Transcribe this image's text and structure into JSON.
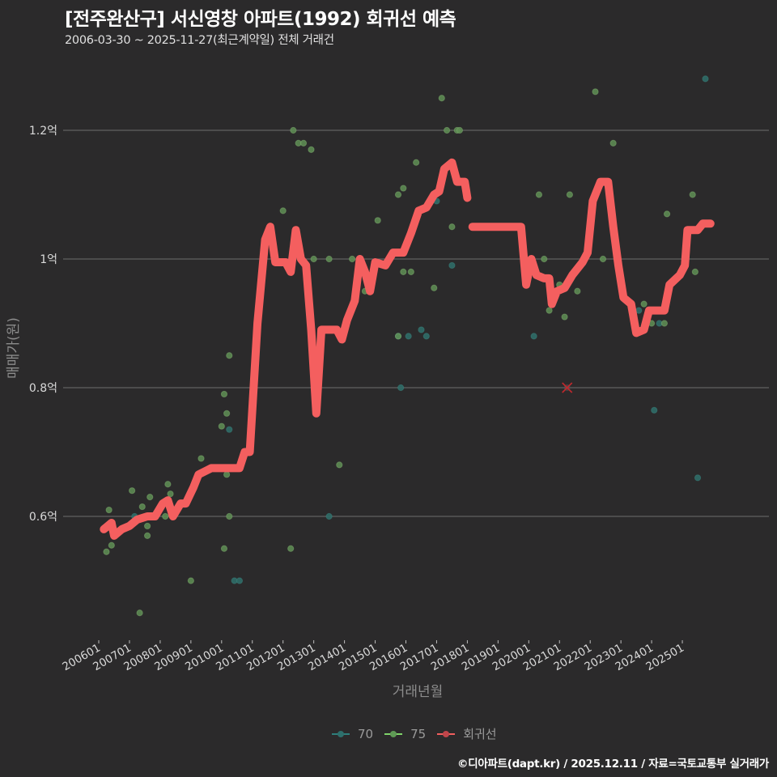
{
  "header": {
    "title": "[전주완산구] 서신영창 아파트(1992) 회귀선 예측",
    "subtitle": "2006-03-30 ~ 2025-11-27(최근계약일) 전체 거래건"
  },
  "footer": {
    "credit": "©디아파트(dapt.kr) / 2025.12.11 / 자료=국토교통부 실거래가"
  },
  "legend": {
    "items": [
      {
        "label": "70",
        "color": "#2e7f7c"
      },
      {
        "label": "75",
        "color": "#7fd46a"
      },
      {
        "label": "회귀선",
        "color": "#f25f5f"
      }
    ]
  },
  "colors": {
    "background": "#2b2a2b",
    "grid": "#6e6e6e",
    "regression": "#f45f5f",
    "area70": "#2f6b67",
    "area75": "#5f8f55",
    "outlier": "#c0282d"
  },
  "chart_data": {
    "type": "scatter+line",
    "title": "[전주완산구] 서신영창 아파트(1992) 회귀선 예측",
    "subtitle": "2006-03-30 ~ 2025-11-27(최근계약일) 전체 거래건",
    "xlabel": "거래년월",
    "ylabel": "매매가(원)",
    "x_ticks": [
      "200601",
      "200701",
      "200801",
      "200901",
      "201001",
      "201101",
      "201201",
      "201301",
      "201401",
      "201501",
      "201601",
      "201701",
      "201801",
      "201901",
      "202001",
      "202101",
      "202201",
      "202301",
      "202401",
      "202501"
    ],
    "y_ticks": [
      {
        "value": 0.6,
        "label": "0.6억"
      },
      {
        "value": 0.8,
        "label": "0.8억"
      },
      {
        "value": 1.0,
        "label": "1억"
      },
      {
        "value": 1.2,
        "label": "1.2억"
      }
    ],
    "ylim": [
      0.42,
      1.3
    ],
    "grid": "horizontal",
    "legend_position": "bottom",
    "series": [
      {
        "name": "70",
        "type": "scatter",
        "points": [
          [
            "200703",
            0.6
          ],
          [
            "201004",
            0.735
          ],
          [
            "201006",
            0.5
          ],
          [
            "201008",
            0.5
          ],
          [
            "201307",
            0.6
          ],
          [
            "201510",
            0.88
          ],
          [
            "201511",
            0.8
          ],
          [
            "201602",
            0.88
          ],
          [
            "201607",
            0.89
          ],
          [
            "201609",
            0.88
          ],
          [
            "201701",
            1.09
          ],
          [
            "201707",
            0.99
          ],
          [
            "202003",
            0.88
          ],
          [
            "202006",
            0.97
          ],
          [
            "202308",
            0.92
          ],
          [
            "202402",
            0.765
          ],
          [
            "202404",
            0.9
          ],
          [
            "202507",
            0.66
          ],
          [
            "202510",
            1.28
          ]
        ]
      },
      {
        "name": "75",
        "type": "scatter",
        "points": [
          [
            "200604",
            0.545
          ],
          [
            "200605",
            0.61
          ],
          [
            "200606",
            0.555
          ],
          [
            "200702",
            0.64
          ],
          [
            "200705",
            0.45
          ],
          [
            "200706",
            0.615
          ],
          [
            "200708",
            0.57
          ],
          [
            "200708",
            0.585
          ],
          [
            "200709",
            0.63
          ],
          [
            "200803",
            0.6
          ],
          [
            "200804",
            0.65
          ],
          [
            "200805",
            0.635
          ],
          [
            "200807",
            0.605
          ],
          [
            "200901",
            0.5
          ],
          [
            "200905",
            0.69
          ],
          [
            "201001",
            0.74
          ],
          [
            "201002",
            0.79
          ],
          [
            "201002",
            0.55
          ],
          [
            "201003",
            0.665
          ],
          [
            "201003",
            0.76
          ],
          [
            "201004",
            0.6
          ],
          [
            "201004",
            0.85
          ],
          [
            "201201",
            1.075
          ],
          [
            "201204",
            0.55
          ],
          [
            "201205",
            1.2
          ],
          [
            "201207",
            1.18
          ],
          [
            "201209",
            1.18
          ],
          [
            "201212",
            1.17
          ],
          [
            "201301",
            1.0
          ],
          [
            "201307",
            1.0
          ],
          [
            "201311",
            0.68
          ],
          [
            "201404",
            1.0
          ],
          [
            "201409",
            0.95
          ],
          [
            "201502",
            1.06
          ],
          [
            "201510",
            1.1
          ],
          [
            "201510",
            0.88
          ],
          [
            "201512",
            1.11
          ],
          [
            "201512",
            0.98
          ],
          [
            "201603",
            0.98
          ],
          [
            "201605",
            1.15
          ],
          [
            "201612",
            0.955
          ],
          [
            "201703",
            1.25
          ],
          [
            "201705",
            1.2
          ],
          [
            "201707",
            1.05
          ],
          [
            "201709",
            1.2
          ],
          [
            "201710",
            1.2
          ],
          [
            "202005",
            1.1
          ],
          [
            "202007",
            1.0
          ],
          [
            "202009",
            0.92
          ],
          [
            "202010",
            0.94
          ],
          [
            "202101",
            0.96
          ],
          [
            "202103",
            0.91
          ],
          [
            "202105",
            1.1
          ],
          [
            "202108",
            0.95
          ],
          [
            "202203",
            1.26
          ],
          [
            "202206",
            1.0
          ],
          [
            "202210",
            1.18
          ],
          [
            "202310",
            0.93
          ],
          [
            "202401",
            0.9
          ],
          [
            "202406",
            0.9
          ],
          [
            "202407",
            1.07
          ],
          [
            "202505",
            1.1
          ],
          [
            "202506",
            0.98
          ]
        ]
      },
      {
        "name": "회귀선",
        "type": "line",
        "points": [
          [
            "200603",
            0.58
          ],
          [
            "200606",
            0.59
          ],
          [
            "200607",
            0.57
          ],
          [
            "200610",
            0.58
          ],
          [
            "200701",
            0.585
          ],
          [
            "200704",
            0.595
          ],
          [
            "200708",
            0.6
          ],
          [
            "200711",
            0.6
          ],
          [
            "200802",
            0.62
          ],
          [
            "200804",
            0.625
          ],
          [
            "200806",
            0.6
          ],
          [
            "200809",
            0.62
          ],
          [
            "200811",
            0.62
          ],
          [
            "200902",
            0.645
          ],
          [
            "200904",
            0.665
          ],
          [
            "200909",
            0.675
          ],
          [
            "201001",
            0.675
          ],
          [
            "201004",
            0.675
          ],
          [
            "201008",
            0.675
          ],
          [
            "201010",
            0.7
          ],
          [
            "201012",
            0.7
          ],
          [
            "201103",
            0.9
          ],
          [
            "201106",
            1.03
          ],
          [
            "201108",
            1.05
          ],
          [
            "201110",
            0.995
          ],
          [
            "201202",
            0.995
          ],
          [
            "201204",
            0.98
          ],
          [
            "201206",
            1.045
          ],
          [
            "201208",
            1.0
          ],
          [
            "201210",
            0.99
          ],
          [
            "201212",
            0.89
          ],
          [
            "201302",
            0.76
          ],
          [
            "201304",
            0.89
          ],
          [
            "201310",
            0.89
          ],
          [
            "201312",
            0.875
          ],
          [
            "201402",
            0.905
          ],
          [
            "201405",
            0.935
          ],
          [
            "201407",
            1.0
          ],
          [
            "201409",
            0.98
          ],
          [
            "201411",
            0.95
          ],
          [
            "201501",
            0.995
          ],
          [
            "201505",
            0.99
          ],
          [
            "201508",
            1.01
          ],
          [
            "201512",
            1.01
          ],
          [
            "201603",
            1.04
          ],
          [
            "201606",
            1.075
          ],
          [
            "201609",
            1.08
          ],
          [
            "201612",
            1.1
          ],
          [
            "201702",
            1.105
          ],
          [
            "201704",
            1.14
          ],
          [
            "201707",
            1.15
          ],
          [
            "201709",
            1.12
          ],
          [
            "201712",
            1.12
          ],
          [
            "201801",
            1.095
          ],
          [
            "201803",
            1.05
          ],
          [
            "201902",
            1.05
          ],
          [
            "201910",
            1.05
          ],
          [
            "201912",
            0.96
          ],
          [
            "202002",
            1.0
          ],
          [
            "202004",
            0.975
          ],
          [
            "202007",
            0.97
          ],
          [
            "202009",
            0.97
          ],
          [
            "202010",
            0.93
          ],
          [
            "202012",
            0.95
          ],
          [
            "202103",
            0.955
          ],
          [
            "202106",
            0.975
          ],
          [
            "202110",
            0.995
          ],
          [
            "202112",
            1.01
          ],
          [
            "202202",
            1.09
          ],
          [
            "202205",
            1.12
          ],
          [
            "202208",
            1.12
          ],
          [
            "202210",
            1.05
          ],
          [
            "202212",
            0.99
          ],
          [
            "202302",
            0.94
          ],
          [
            "202305",
            0.93
          ],
          [
            "202307",
            0.885
          ],
          [
            "202310",
            0.89
          ],
          [
            "202312",
            0.92
          ],
          [
            "202402",
            0.92
          ],
          [
            "202406",
            0.92
          ],
          [
            "202408",
            0.96
          ],
          [
            "202412",
            0.975
          ],
          [
            "202502",
            0.99
          ],
          [
            "202503",
            1.045
          ],
          [
            "202507",
            1.045
          ],
          [
            "202509",
            1.055
          ],
          [
            "202512",
            1.055
          ]
        ]
      }
    ],
    "annotations": [
      {
        "type": "x-marker",
        "x": "202104",
        "y": 0.8,
        "color": "#c0282d"
      }
    ]
  },
  "axes": {
    "y_title": "매매가(원)",
    "x_title": "거래년월"
  }
}
